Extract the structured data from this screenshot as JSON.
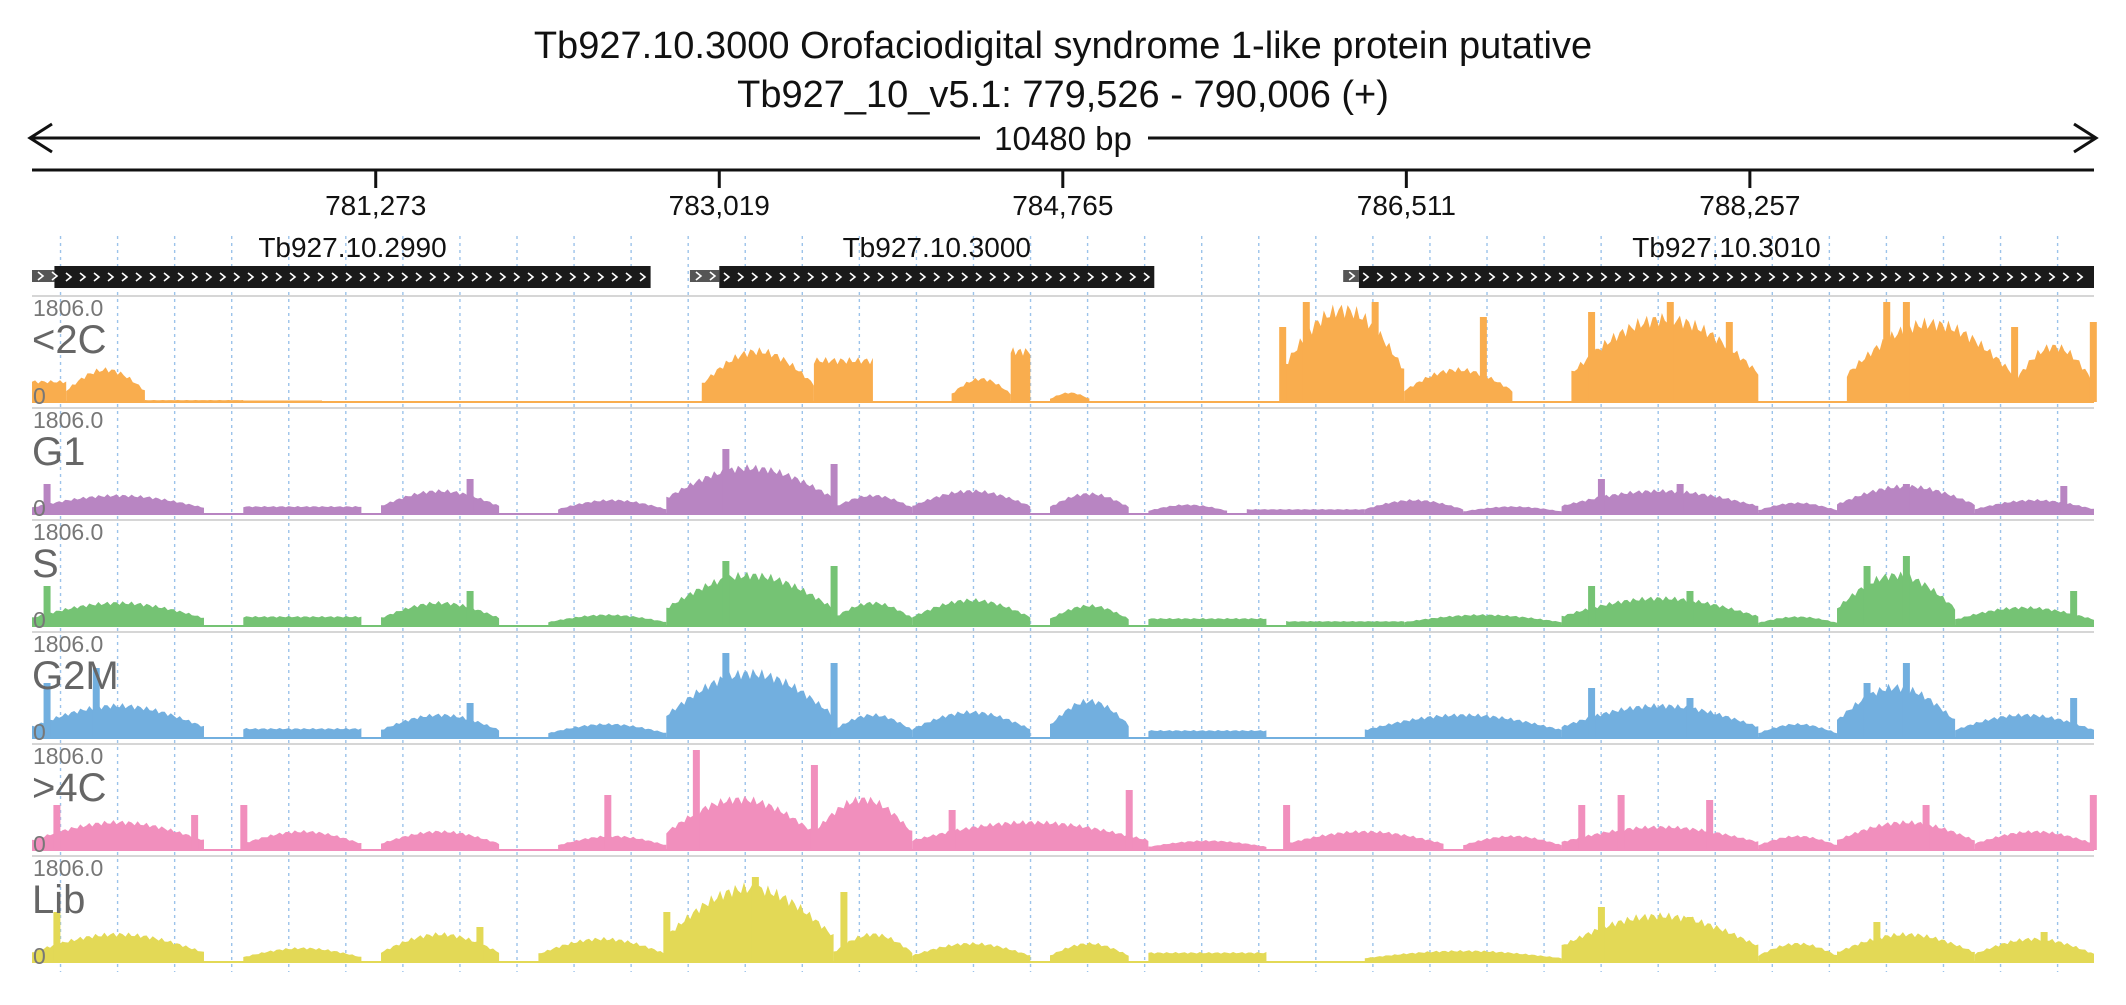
{
  "title": "Tb927.10.3000  Orofaciodigital syndrome 1-like protein  putative",
  "subtitle": "Tb927_10_v5.1: 779,526 - 790,006 (+)",
  "region": {
    "chrom": "Tb927_10_v5.1",
    "start": 779526,
    "end": 790006,
    "strand": "+",
    "length_label": "10480 bp"
  },
  "chart_data": {
    "type": "area",
    "x_ticks": [
      {
        "pos": 781273,
        "label": "781,273"
      },
      {
        "pos": 783019,
        "label": "783,019"
      },
      {
        "pos": 784765,
        "label": "784,765"
      },
      {
        "pos": 786511,
        "label": "786,511"
      },
      {
        "pos": 788257,
        "label": "788,257"
      }
    ],
    "genes": [
      {
        "name": "Tb927.10.2990",
        "start": 779526,
        "end": 782670,
        "utr_start": 779526,
        "cds_start": 779640,
        "strand": "+"
      },
      {
        "name": "Tb927.10.3000",
        "start": 782870,
        "end": 785230,
        "utr_start": 782870,
        "cds_start": 783019,
        "strand": "+"
      },
      {
        "name": "Tb927.10.3010",
        "start": 786190,
        "end": 790006,
        "utr_start": 786190,
        "cds_start": 786270,
        "strand": "+"
      }
    ],
    "tracks": [
      {
        "name": "<2C",
        "color": "#f9ad4e",
        "ymax": 1806.0,
        "ymin": 0,
        "segments": [
          [
            779526,
            779700,
            0.22,
            "flat"
          ],
          [
            779700,
            780100,
            0.35,
            "hump"
          ],
          [
            780100,
            780600,
            0.02,
            "flat"
          ],
          [
            780600,
            781000,
            0.01,
            "flat"
          ],
          [
            782930,
            783500,
            0.55,
            "hump"
          ],
          [
            783500,
            783800,
            0.45,
            "flat"
          ],
          [
            784200,
            784500,
            0.25,
            "hump"
          ],
          [
            784500,
            784600,
            0.55,
            "flat"
          ],
          [
            784700,
            784900,
            0.1,
            "hump"
          ],
          [
            785880,
            786500,
            1.0,
            "hump"
          ],
          [
            786500,
            787050,
            0.35,
            "hump"
          ],
          [
            787350,
            788300,
            0.9,
            "hump"
          ],
          [
            788750,
            789600,
            0.85,
            "hump"
          ],
          [
            789600,
            790006,
            0.6,
            "hump"
          ]
        ],
        "spikes": [
          [
            785880,
            0.75
          ],
          [
            786000,
            1.0
          ],
          [
            786350,
            1.0
          ],
          [
            786900,
            0.85
          ],
          [
            787450,
            0.9
          ],
          [
            787850,
            1.0
          ],
          [
            788150,
            0.8
          ],
          [
            788950,
            1.0
          ],
          [
            789050,
            1.0
          ],
          [
            789600,
            0.75
          ],
          [
            790000,
            0.8
          ]
        ]
      },
      {
        "name": "G1",
        "color": "#b885c2",
        "ymax": 1806.0,
        "ymin": 0,
        "segments": [
          [
            779526,
            780400,
            0.2,
            "hump"
          ],
          [
            780600,
            781200,
            0.08,
            "flat"
          ],
          [
            781300,
            781900,
            0.25,
            "hump"
          ],
          [
            782200,
            782750,
            0.15,
            "hump"
          ],
          [
            782750,
            783600,
            0.5,
            "hump"
          ],
          [
            783600,
            784000,
            0.2,
            "hump"
          ],
          [
            784000,
            784600,
            0.25,
            "hump"
          ],
          [
            784700,
            785100,
            0.22,
            "hump"
          ],
          [
            785200,
            785600,
            0.1,
            "hump"
          ],
          [
            785700,
            786300,
            0.05,
            "flat"
          ],
          [
            786300,
            786800,
            0.15,
            "hump"
          ],
          [
            786800,
            787300,
            0.08,
            "hump"
          ],
          [
            787300,
            788300,
            0.25,
            "hump"
          ],
          [
            788300,
            788700,
            0.12,
            "hump"
          ],
          [
            788700,
            789400,
            0.3,
            "hump"
          ],
          [
            789400,
            790006,
            0.15,
            "hump"
          ]
        ],
        "spikes": [
          [
            779600,
            0.3
          ],
          [
            781750,
            0.35
          ],
          [
            783050,
            0.65
          ],
          [
            783600,
            0.5
          ],
          [
            787500,
            0.35
          ],
          [
            787900,
            0.3
          ],
          [
            789050,
            0.3
          ],
          [
            789850,
            0.28
          ]
        ]
      },
      {
        "name": "S",
        "color": "#75c374",
        "ymax": 1806.0,
        "ymin": 0,
        "segments": [
          [
            779526,
            780400,
            0.25,
            "hump"
          ],
          [
            780600,
            781200,
            0.1,
            "flat"
          ],
          [
            781300,
            781900,
            0.25,
            "hump"
          ],
          [
            782150,
            782750,
            0.12,
            "hump"
          ],
          [
            782750,
            783600,
            0.55,
            "hump"
          ],
          [
            783600,
            784000,
            0.25,
            "hump"
          ],
          [
            784000,
            784600,
            0.28,
            "hump"
          ],
          [
            784700,
            785100,
            0.22,
            "hump"
          ],
          [
            785200,
            785800,
            0.08,
            "flat"
          ],
          [
            785900,
            786500,
            0.05,
            "flat"
          ],
          [
            786500,
            787300,
            0.12,
            "hump"
          ],
          [
            787300,
            788300,
            0.3,
            "hump"
          ],
          [
            788300,
            788700,
            0.1,
            "hump"
          ],
          [
            788700,
            789300,
            0.55,
            "hump"
          ],
          [
            789300,
            790006,
            0.2,
            "hump"
          ]
        ],
        "spikes": [
          [
            779600,
            0.4
          ],
          [
            781750,
            0.35
          ],
          [
            783050,
            0.65
          ],
          [
            783600,
            0.6
          ],
          [
            787450,
            0.4
          ],
          [
            787950,
            0.35
          ],
          [
            788850,
            0.6
          ],
          [
            789050,
            0.7
          ],
          [
            789900,
            0.35
          ]
        ]
      },
      {
        "name": "G2M",
        "color": "#72afdf",
        "ymax": 1806.0,
        "ymin": 0,
        "segments": [
          [
            779526,
            780400,
            0.35,
            "hump"
          ],
          [
            780600,
            781200,
            0.1,
            "flat"
          ],
          [
            781300,
            781900,
            0.25,
            "hump"
          ],
          [
            782150,
            782750,
            0.15,
            "hump"
          ],
          [
            782750,
            783600,
            0.7,
            "hump"
          ],
          [
            783600,
            784000,
            0.25,
            "hump"
          ],
          [
            784000,
            784600,
            0.28,
            "hump"
          ],
          [
            784700,
            785100,
            0.4,
            "hump"
          ],
          [
            785200,
            785800,
            0.08,
            "flat"
          ],
          [
            786300,
            787300,
            0.25,
            "hump"
          ],
          [
            787300,
            788300,
            0.35,
            "hump"
          ],
          [
            788300,
            788700,
            0.15,
            "hump"
          ],
          [
            788700,
            789300,
            0.55,
            "hump"
          ],
          [
            789300,
            790006,
            0.25,
            "hump"
          ]
        ],
        "spikes": [
          [
            779600,
            0.55
          ],
          [
            779850,
            0.7
          ],
          [
            781750,
            0.35
          ],
          [
            783050,
            0.85
          ],
          [
            783600,
            0.75
          ],
          [
            787450,
            0.5
          ],
          [
            787950,
            0.4
          ],
          [
            788850,
            0.55
          ],
          [
            789050,
            0.75
          ],
          [
            789900,
            0.4
          ]
        ]
      },
      {
        "name": ">4C",
        "color": "#f18fbd",
        "ymax": 1806.0,
        "ymin": 0,
        "segments": [
          [
            779526,
            780400,
            0.3,
            "hump"
          ],
          [
            780600,
            781200,
            0.2,
            "hump"
          ],
          [
            781300,
            781900,
            0.2,
            "hump"
          ],
          [
            782200,
            782750,
            0.15,
            "hump"
          ],
          [
            782750,
            783500,
            0.55,
            "hump"
          ],
          [
            783500,
            784000,
            0.55,
            "hump"
          ],
          [
            784000,
            785200,
            0.3,
            "hump"
          ],
          [
            785200,
            785800,
            0.1,
            "hump"
          ],
          [
            785900,
            786700,
            0.2,
            "hump"
          ],
          [
            786800,
            787300,
            0.15,
            "hump"
          ],
          [
            787300,
            788300,
            0.25,
            "hump"
          ],
          [
            788300,
            788700,
            0.15,
            "hump"
          ],
          [
            788700,
            789400,
            0.3,
            "hump"
          ],
          [
            789400,
            790006,
            0.2,
            "hump"
          ]
        ],
        "spikes": [
          [
            779650,
            0.45
          ],
          [
            780350,
            0.35
          ],
          [
            780600,
            0.45
          ],
          [
            782450,
            0.55
          ],
          [
            782900,
            1.0
          ],
          [
            783500,
            0.85
          ],
          [
            784200,
            0.4
          ],
          [
            785100,
            0.6
          ],
          [
            785900,
            0.45
          ],
          [
            787400,
            0.45
          ],
          [
            787600,
            0.55
          ],
          [
            788050,
            0.5
          ],
          [
            789150,
            0.45
          ],
          [
            790000,
            0.55
          ]
        ]
      },
      {
        "name": "Lib",
        "color": "#e3d956",
        "ymax": 1806.0,
        "ymin": 0,
        "segments": [
          [
            779526,
            780400,
            0.3,
            "hump"
          ],
          [
            780600,
            781200,
            0.15,
            "hump"
          ],
          [
            781300,
            781900,
            0.3,
            "hump"
          ],
          [
            782100,
            782750,
            0.25,
            "hump"
          ],
          [
            782750,
            783600,
            0.8,
            "hump"
          ],
          [
            783600,
            784000,
            0.3,
            "hump"
          ],
          [
            784000,
            784600,
            0.2,
            "hump"
          ],
          [
            784700,
            785100,
            0.2,
            "hump"
          ],
          [
            785200,
            785800,
            0.1,
            "flat"
          ],
          [
            786300,
            787300,
            0.12,
            "hump"
          ],
          [
            787300,
            788300,
            0.5,
            "hump"
          ],
          [
            788300,
            788700,
            0.2,
            "hump"
          ],
          [
            788700,
            789400,
            0.3,
            "hump"
          ],
          [
            789400,
            790006,
            0.25,
            "hump"
          ]
        ],
        "spikes": [
          [
            779650,
            0.5
          ],
          [
            781800,
            0.35
          ],
          [
            782750,
            0.5
          ],
          [
            783200,
            0.85
          ],
          [
            783650,
            0.7
          ],
          [
            787500,
            0.55
          ],
          [
            787950,
            0.45
          ],
          [
            788900,
            0.4
          ],
          [
            789750,
            0.3
          ]
        ]
      }
    ],
    "grid": "dotted-vertical",
    "grid_step_bp": 290
  }
}
